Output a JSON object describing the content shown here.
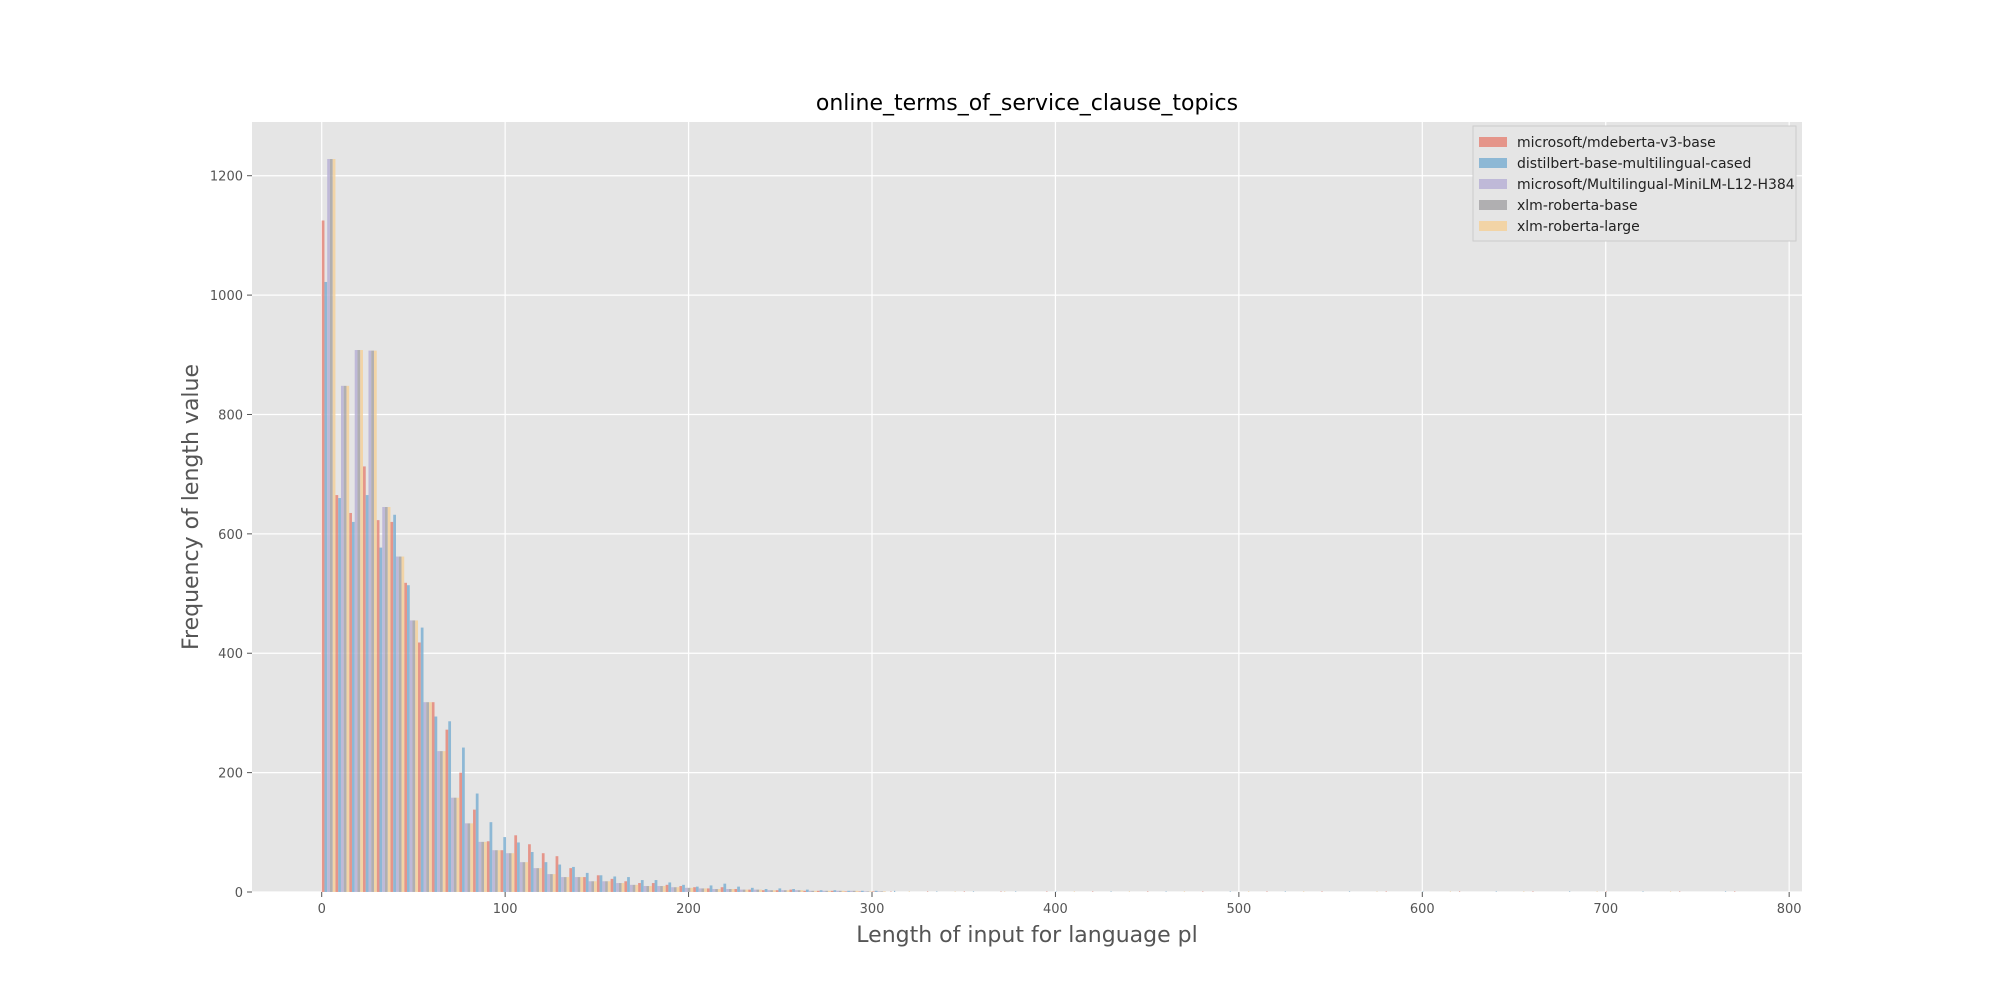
{
  "chart_data": {
    "type": "bar",
    "title": "online_terms_of_service_clause_topics",
    "xlabel": "Length of input for language pl",
    "ylabel": "Frequency of length value",
    "xlim": [
      -38,
      807
    ],
    "ylim": [
      0,
      1290
    ],
    "xticks": [
      0,
      100,
      200,
      300,
      400,
      500,
      600,
      700,
      800
    ],
    "yticks": [
      0,
      200,
      400,
      600,
      800,
      1000,
      1200
    ],
    "grid": true,
    "legend_position": "top-right",
    "bin_width": 7.5,
    "series": [
      {
        "name": "microsoft/mdeberta-v3-base",
        "color": "#e5877a",
        "bins": [
          0,
          7.5,
          15,
          22.5,
          30,
          37.5,
          45,
          52.5,
          60,
          67.5,
          75,
          82.5,
          90,
          97.5,
          105,
          112.5,
          120,
          127.5,
          135,
          142.5,
          150,
          157.5,
          165,
          172.5,
          180,
          187.5,
          195,
          202.5,
          210,
          217.5,
          225,
          232.5,
          240,
          247.5,
          255,
          262.5,
          270,
          277.5,
          285,
          292.5,
          300
        ],
        "values": [
          1125,
          665,
          635,
          713,
          623,
          620,
          518,
          418,
          318,
          272,
          200,
          138,
          85,
          70,
          95,
          80,
          65,
          60,
          40,
          25,
          28,
          22,
          18,
          15,
          15,
          12,
          10,
          8,
          6,
          8,
          5,
          4,
          3,
          3,
          4,
          2,
          2,
          2,
          1,
          1,
          1
        ]
      },
      {
        "name": "distilbert-base-multilingual-cased",
        "color": "#7eb0d2",
        "bins": [
          0,
          7.5,
          15,
          22.5,
          30,
          37.5,
          45,
          52.5,
          60,
          67.5,
          75,
          82.5,
          90,
          97.5,
          105,
          112.5,
          120,
          127.5,
          135,
          142.5,
          150,
          157.5,
          165,
          172.5,
          180,
          187.5,
          195,
          202.5,
          210,
          217.5,
          225,
          232.5,
          240,
          247.5,
          255,
          262.5,
          270,
          277.5,
          285,
          292.5,
          300
        ],
        "values": [
          1022,
          660,
          620,
          665,
          577,
          632,
          514,
          443,
          294,
          286,
          242,
          165,
          117,
          92,
          83,
          67,
          50,
          46,
          42,
          32,
          28,
          26,
          25,
          20,
          20,
          16,
          12,
          9,
          11,
          14,
          9,
          7,
          5,
          6,
          5,
          4,
          3,
          3,
          2,
          2,
          2
        ]
      },
      {
        "name": "microsoft/Multilingual-MiniLM-L12-H384",
        "color": "#b9b1d6",
        "bins": [
          0,
          7.5,
          15,
          22.5,
          30,
          37.5,
          45,
          52.5,
          60,
          67.5,
          75,
          82.5,
          90,
          97.5,
          105,
          112.5,
          120,
          127.5,
          135,
          142.5,
          150,
          157.5,
          165,
          172.5,
          180,
          187.5,
          195,
          202.5,
          210,
          217.5,
          225,
          232.5,
          240,
          247.5,
          255,
          262.5,
          270,
          277.5,
          285,
          292.5,
          300
        ],
        "values": [
          1228,
          848,
          908,
          907,
          645,
          562,
          455,
          318,
          236,
          158,
          115,
          84,
          70,
          65,
          50,
          40,
          30,
          25,
          25,
          18,
          18,
          15,
          12,
          10,
          10,
          8,
          7,
          6,
          5,
          5,
          4,
          4,
          3,
          3,
          3,
          2,
          2,
          2,
          2,
          1,
          1
        ]
      },
      {
        "name": "xlm-roberta-base",
        "color": "#a7a6a8",
        "bins": [
          0,
          7.5,
          15,
          22.5,
          30,
          37.5,
          45,
          52.5,
          60,
          67.5,
          75,
          82.5,
          90,
          97.5,
          105,
          112.5,
          120,
          127.5,
          135,
          142.5,
          150,
          157.5,
          165,
          172.5,
          180,
          187.5,
          195,
          202.5,
          210,
          217.5,
          225,
          232.5,
          240,
          247.5,
          255,
          262.5,
          270,
          277.5,
          285,
          292.5,
          300
        ],
        "values": [
          1228,
          848,
          908,
          907,
          645,
          562,
          455,
          318,
          236,
          158,
          115,
          84,
          70,
          65,
          50,
          40,
          30,
          25,
          25,
          18,
          18,
          15,
          12,
          10,
          10,
          8,
          7,
          6,
          5,
          5,
          4,
          4,
          3,
          3,
          3,
          2,
          2,
          2,
          2,
          1,
          1
        ]
      },
      {
        "name": "xlm-roberta-large",
        "color": "#f4d19b",
        "bins": [
          0,
          7.5,
          15,
          22.5,
          30,
          37.5,
          45,
          52.5,
          60,
          67.5,
          75,
          82.5,
          90,
          97.5,
          105,
          112.5,
          120,
          127.5,
          135,
          142.5,
          150,
          157.5,
          165,
          172.5,
          180,
          187.5,
          195,
          202.5,
          210,
          217.5,
          225,
          232.5,
          240,
          247.5,
          255,
          262.5,
          270,
          277.5,
          285,
          292.5,
          300
        ],
        "values": [
          1228,
          848,
          908,
          907,
          645,
          562,
          455,
          318,
          236,
          158,
          115,
          84,
          70,
          65,
          50,
          40,
          30,
          25,
          25,
          18,
          18,
          15,
          12,
          10,
          10,
          8,
          7,
          6,
          5,
          5,
          4,
          4,
          3,
          3,
          3,
          2,
          2,
          2,
          2,
          1,
          1
        ]
      }
    ],
    "tail_series": [
      {
        "name": "microsoft/mdeberta-v3-base",
        "x": [
          310,
          330,
          350,
          370,
          395,
          420,
          450,
          480,
          515,
          545,
          580,
          620,
          660,
          700,
          740,
          770
        ],
        "values": [
          1,
          1,
          1,
          1,
          1,
          1,
          1,
          1,
          1,
          1,
          1,
          1,
          1,
          1,
          1,
          1
        ]
      },
      {
        "name": "distilbert-base-multilingual-cased",
        "x": [
          312,
          335,
          355,
          378,
          400,
          430,
          460,
          495,
          525,
          560,
          600,
          640,
          680,
          720,
          765
        ],
        "values": [
          2,
          1,
          1,
          1,
          1,
          1,
          1,
          1,
          1,
          1,
          1,
          1,
          1,
          1,
          1
        ]
      },
      {
        "name": "xlm-roberta-large",
        "x": [
          320,
          345,
          372,
          410,
          440,
          470,
          505,
          535,
          575,
          615,
          655,
          695,
          735
        ],
        "values": [
          1,
          1,
          1,
          1,
          1,
          1,
          1,
          1,
          1,
          1,
          1,
          1,
          1
        ]
      }
    ]
  }
}
